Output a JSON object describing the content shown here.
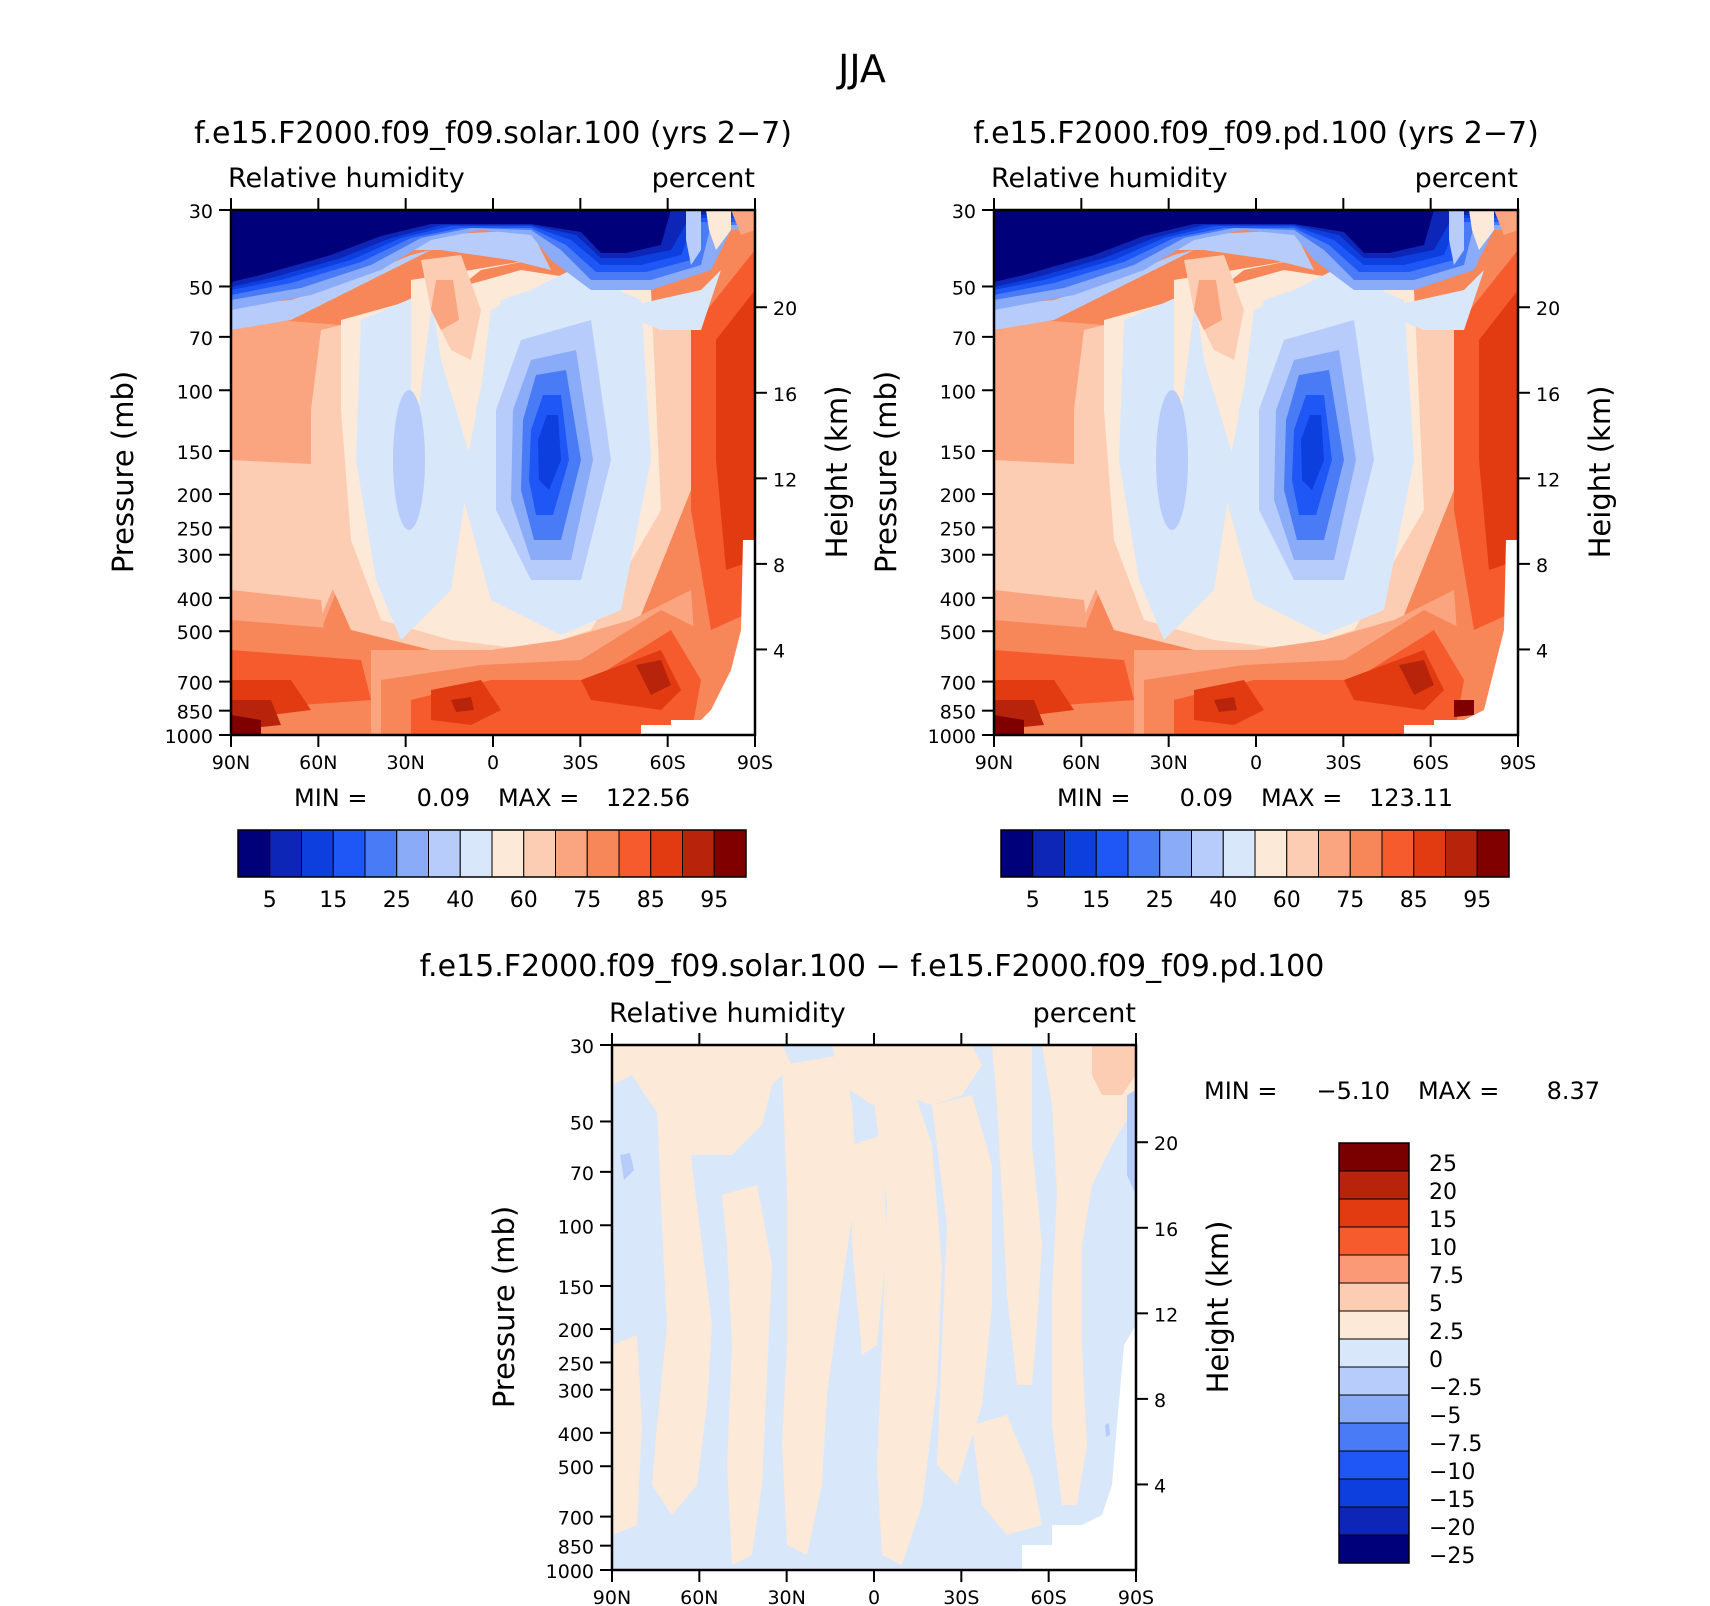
{
  "figure": {
    "season_title": "JJA"
  },
  "palette": {
    "abs_colors": [
      "#00007b",
      "#0e26b8",
      "#0c3fdd",
      "#1e57f5",
      "#4a7bf7",
      "#8aabf8",
      "#b7ccfa",
      "#d9e7fb",
      "#fde9d8",
      "#fccdb3",
      "#faa480",
      "#f78658",
      "#f55b2d",
      "#e23b12",
      "#b8240b",
      "#800000"
    ],
    "abs_labels": [
      "5",
      "15",
      "25",
      "40",
      "60",
      "75",
      "85",
      "95"
    ],
    "diff_colors": [
      "#7a0000",
      "#b8240b",
      "#e23b12",
      "#f55b2d",
      "#fb9876",
      "#fccdb3",
      "#fde9d8",
      "#d9e7fb",
      "#b7ccfa",
      "#8aabf8",
      "#4a7bf7",
      "#1e57f5",
      "#0c3fdd",
      "#0e26b8",
      "#00007b"
    ],
    "diff_labels": [
      "25",
      "20",
      "15",
      "10",
      "7.5",
      "5",
      "2.5",
      "0",
      "−2.5",
      "−5",
      "−7.5",
      "−10",
      "−15",
      "−20",
      "−25"
    ]
  },
  "axes": {
    "pressure_ticks": [
      "30",
      "50",
      "70",
      "100",
      "150",
      "200",
      "250",
      "300",
      "400",
      "500",
      "700",
      "850",
      "1000"
    ],
    "height_ticks": [
      "20",
      "16",
      "12",
      "8",
      "4"
    ],
    "lat_ticks": [
      "90N",
      "60N",
      "30N",
      "0",
      "30S",
      "60S",
      "90S"
    ],
    "ylabel": "Pressure (mb)",
    "ylabel_right": "Height (km)"
  },
  "panels": [
    {
      "title": "f.e15.F2000.f09_f09.solar.100 (yrs 2−7)",
      "variable": "Relative humidity",
      "units": "percent",
      "min_label": "MIN =",
      "min_value": "0.09",
      "max_label": "MAX =",
      "max_value": "122.56"
    },
    {
      "title": "f.e15.F2000.f09_f09.pd.100 (yrs 2−7)",
      "variable": "Relative humidity",
      "units": "percent",
      "min_label": "MIN =",
      "min_value": "0.09",
      "max_label": "MAX =",
      "max_value": "123.11"
    },
    {
      "title": "f.e15.F2000.f09_f09.solar.100 − f.e15.F2000.f09_f09.pd.100",
      "variable": "Relative humidity",
      "units": "percent",
      "min_label": "MIN =",
      "min_value": "−5.10",
      "max_label": "MAX =",
      "max_value": "8.37"
    }
  ],
  "chart_data": [
    {
      "type": "heatmap",
      "title": "f.e15.F2000.f09_f09.solar.100 (yrs 2−7)",
      "x": [
        "90N",
        "60N",
        "30N",
        "0",
        "30S",
        "60S",
        "90S"
      ],
      "y": [
        30,
        50,
        70,
        100,
        150,
        200,
        250,
        300,
        400,
        500,
        700,
        850,
        1000
      ],
      "xlabel": "",
      "ylabel": "Pressure (mb)",
      "ylabel_right": "Height (km)",
      "units": "percent",
      "min": 0.09,
      "max": 122.56
    },
    {
      "type": "heatmap",
      "title": "f.e15.F2000.f09_f09.pd.100 (yrs 2−7)",
      "x": [
        "90N",
        "60N",
        "30N",
        "0",
        "30S",
        "60S",
        "90S"
      ],
      "y": [
        30,
        50,
        70,
        100,
        150,
        200,
        250,
        300,
        400,
        500,
        700,
        850,
        1000
      ],
      "xlabel": "",
      "ylabel": "Pressure (mb)",
      "ylabel_right": "Height (km)",
      "units": "percent",
      "min": 0.09,
      "max": 123.11
    },
    {
      "type": "heatmap",
      "title": "f.e15.F2000.f09_f09.solar.100 − f.e15.F2000.f09_f09.pd.100",
      "x": [
        "90N",
        "60N",
        "30N",
        "0",
        "30S",
        "60S",
        "90S"
      ],
      "y": [
        30,
        50,
        70,
        100,
        150,
        200,
        250,
        300,
        400,
        500,
        700,
        850,
        1000
      ],
      "xlabel": "",
      "ylabel": "Pressure (mb)",
      "ylabel_right": "Height (km)",
      "units": "percent",
      "min": -5.1,
      "max": 8.37
    }
  ]
}
